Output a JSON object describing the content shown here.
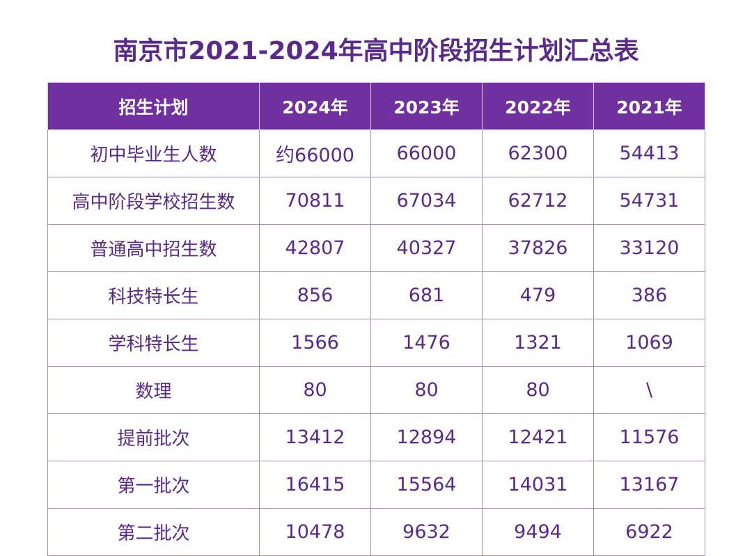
{
  "title": "南京市2021-2024年高中阶段招生计划汇总表",
  "table": {
    "headers": [
      "招生计划",
      "2024年",
      "2023年",
      "2022年",
      "2021年"
    ],
    "rows": [
      {
        "label": "初中毕业生人数",
        "values": [
          "约66000",
          "66000",
          "62300",
          "54413"
        ]
      },
      {
        "label": "高中阶段学校招生数",
        "values": [
          "70811",
          "67034",
          "62712",
          "54731"
        ]
      },
      {
        "label": "普通高中招生数",
        "values": [
          "42807",
          "40327",
          "37826",
          "33120"
        ]
      },
      {
        "label": "科技特长生",
        "values": [
          "856",
          "681",
          "479",
          "386"
        ]
      },
      {
        "label": "学科特长生",
        "values": [
          "1566",
          "1476",
          "1321",
          "1069"
        ]
      },
      {
        "label": "数理",
        "values": [
          "80",
          "80",
          "80",
          "\\"
        ]
      },
      {
        "label": "提前批次",
        "values": [
          "13412",
          "12894",
          "12421",
          "11576"
        ]
      },
      {
        "label": "第一批次",
        "values": [
          "16415",
          "15564",
          "14031",
          "13167"
        ]
      },
      {
        "label": "第二批次",
        "values": [
          "10478",
          "9632",
          "9494",
          "6922"
        ]
      }
    ]
  },
  "colors": {
    "header_bg": "#7030a0",
    "text": "#5a2a8a",
    "border": "#a58cc0"
  }
}
